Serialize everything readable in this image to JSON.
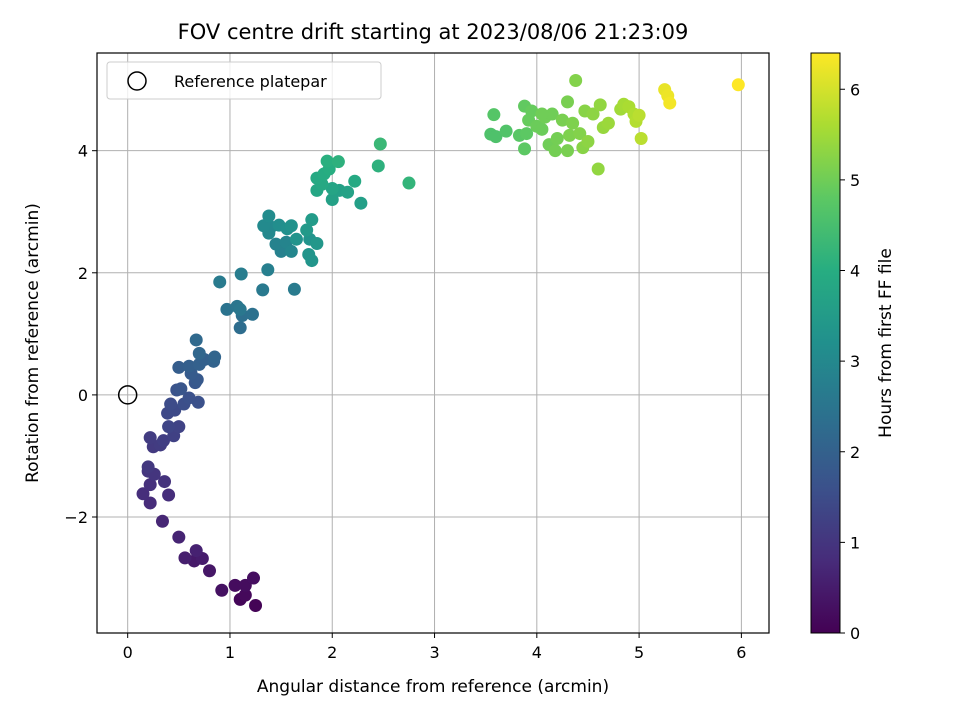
{
  "chart_data": {
    "type": "scatter",
    "title": "FOV centre drift starting at 2023/08/06 21:23:09",
    "xlabel": "Angular distance from reference (arcmin)",
    "ylabel": "Rotation from reference (arcmin)",
    "xlim": [
      -0.3,
      6.27
    ],
    "ylim": [
      -3.9,
      5.6
    ],
    "xticks": [
      0,
      1,
      2,
      3,
      4,
      5,
      6
    ],
    "yticks": [
      -2,
      0,
      2,
      4
    ],
    "xtick_labels": [
      "0",
      "1",
      "2",
      "3",
      "4",
      "5",
      "6"
    ],
    "ytick_labels": [
      "−2",
      "0",
      "2",
      "4"
    ],
    "grid": true,
    "legend": {
      "position": "top-left",
      "entries": [
        {
          "label": "Reference platepar",
          "marker": "open-circle"
        }
      ]
    },
    "reference_point": {
      "x": 0,
      "y": 0
    },
    "colorbar": {
      "label": "Hours from first FF file",
      "range": [
        0,
        6.4
      ],
      "ticks": [
        0,
        1,
        2,
        3,
        4,
        5,
        6
      ],
      "tick_labels": [
        "0",
        "1",
        "2",
        "3",
        "4",
        "5",
        "6"
      ],
      "colormap": "viridis"
    },
    "points": [
      {
        "x": 1.25,
        "y": -3.45,
        "h": 0.05
      },
      {
        "x": 1.1,
        "y": -3.35,
        "h": 0.1
      },
      {
        "x": 1.15,
        "y": -3.28,
        "h": 0.15
      },
      {
        "x": 1.05,
        "y": -3.12,
        "h": 0.2
      },
      {
        "x": 1.15,
        "y": -3.12,
        "h": 0.22
      },
      {
        "x": 1.23,
        "y": -3.0,
        "h": 0.25
      },
      {
        "x": 0.92,
        "y": -3.2,
        "h": 0.3
      },
      {
        "x": 0.8,
        "y": -2.88,
        "h": 0.4
      },
      {
        "x": 0.65,
        "y": -2.72,
        "h": 0.45
      },
      {
        "x": 0.73,
        "y": -2.68,
        "h": 0.5
      },
      {
        "x": 0.56,
        "y": -2.67,
        "h": 0.55
      },
      {
        "x": 0.67,
        "y": -2.55,
        "h": 0.6
      },
      {
        "x": 0.5,
        "y": -2.33,
        "h": 0.65
      },
      {
        "x": 0.34,
        "y": -2.07,
        "h": 0.7
      },
      {
        "x": 0.22,
        "y": -1.77,
        "h": 0.8
      },
      {
        "x": 0.15,
        "y": -1.62,
        "h": 0.85
      },
      {
        "x": 0.4,
        "y": -1.64,
        "h": 0.85
      },
      {
        "x": 0.22,
        "y": -1.47,
        "h": 0.9
      },
      {
        "x": 0.36,
        "y": -1.42,
        "h": 0.95
      },
      {
        "x": 0.2,
        "y": -1.25,
        "h": 1.0
      },
      {
        "x": 0.26,
        "y": -1.3,
        "h": 1.0
      },
      {
        "x": 0.2,
        "y": -1.18,
        "h": 1.05
      },
      {
        "x": 0.25,
        "y": -0.85,
        "h": 1.1
      },
      {
        "x": 0.32,
        "y": -0.82,
        "h": 1.15
      },
      {
        "x": 0.22,
        "y": -0.7,
        "h": 1.15
      },
      {
        "x": 0.35,
        "y": -0.75,
        "h": 1.2
      },
      {
        "x": 0.45,
        "y": -0.67,
        "h": 1.25
      },
      {
        "x": 0.5,
        "y": -0.52,
        "h": 1.3
      },
      {
        "x": 0.4,
        "y": -0.52,
        "h": 1.35
      },
      {
        "x": 0.39,
        "y": -0.3,
        "h": 1.4
      },
      {
        "x": 0.46,
        "y": -0.25,
        "h": 1.45
      },
      {
        "x": 0.42,
        "y": -0.15,
        "h": 1.5
      },
      {
        "x": 0.55,
        "y": -0.15,
        "h": 1.55
      },
      {
        "x": 0.69,
        "y": -0.12,
        "h": 1.6
      },
      {
        "x": 0.6,
        "y": -0.05,
        "h": 1.6
      },
      {
        "x": 0.48,
        "y": 0.08,
        "h": 1.65
      },
      {
        "x": 0.52,
        "y": 0.1,
        "h": 1.7
      },
      {
        "x": 0.66,
        "y": 0.2,
        "h": 1.75
      },
      {
        "x": 0.68,
        "y": 0.25,
        "h": 1.8
      },
      {
        "x": 0.62,
        "y": 0.35,
        "h": 1.85
      },
      {
        "x": 0.5,
        "y": 0.45,
        "h": 1.9
      },
      {
        "x": 0.6,
        "y": 0.47,
        "h": 1.95
      },
      {
        "x": 0.7,
        "y": 0.5,
        "h": 2.0
      },
      {
        "x": 0.75,
        "y": 0.58,
        "h": 2.0
      },
      {
        "x": 0.84,
        "y": 0.55,
        "h": 2.05
      },
      {
        "x": 0.85,
        "y": 0.62,
        "h": 2.1
      },
      {
        "x": 0.7,
        "y": 0.68,
        "h": 2.15
      },
      {
        "x": 0.67,
        "y": 0.9,
        "h": 2.2
      },
      {
        "x": 1.1,
        "y": 1.1,
        "h": 2.3
      },
      {
        "x": 1.12,
        "y": 1.3,
        "h": 2.35
      },
      {
        "x": 1.22,
        "y": 1.32,
        "h": 2.4
      },
      {
        "x": 0.97,
        "y": 1.4,
        "h": 2.45
      },
      {
        "x": 1.07,
        "y": 1.45,
        "h": 2.5
      },
      {
        "x": 1.1,
        "y": 1.4,
        "h": 2.55
      },
      {
        "x": 1.32,
        "y": 1.72,
        "h": 2.6
      },
      {
        "x": 1.63,
        "y": 1.73,
        "h": 2.65
      },
      {
        "x": 0.9,
        "y": 1.85,
        "h": 2.65
      },
      {
        "x": 1.11,
        "y": 1.98,
        "h": 2.7
      },
      {
        "x": 1.37,
        "y": 2.05,
        "h": 2.75
      },
      {
        "x": 1.5,
        "y": 2.35,
        "h": 2.8
      },
      {
        "x": 1.45,
        "y": 2.47,
        "h": 2.85
      },
      {
        "x": 1.55,
        "y": 2.5,
        "h": 2.9
      },
      {
        "x": 1.6,
        "y": 2.35,
        "h": 2.95
      },
      {
        "x": 1.38,
        "y": 2.65,
        "h": 3.0
      },
      {
        "x": 1.4,
        "y": 2.75,
        "h": 3.0
      },
      {
        "x": 1.33,
        "y": 2.77,
        "h": 3.05
      },
      {
        "x": 1.38,
        "y": 2.93,
        "h": 3.1
      },
      {
        "x": 1.48,
        "y": 2.78,
        "h": 3.15
      },
      {
        "x": 1.56,
        "y": 2.72,
        "h": 3.2
      },
      {
        "x": 1.6,
        "y": 2.77,
        "h": 3.25
      },
      {
        "x": 1.65,
        "y": 2.55,
        "h": 3.3
      },
      {
        "x": 1.78,
        "y": 2.55,
        "h": 3.3
      },
      {
        "x": 1.77,
        "y": 2.3,
        "h": 3.35
      },
      {
        "x": 1.8,
        "y": 2.2,
        "h": 3.35
      },
      {
        "x": 1.85,
        "y": 2.48,
        "h": 3.4
      },
      {
        "x": 1.75,
        "y": 2.7,
        "h": 3.45
      },
      {
        "x": 1.8,
        "y": 2.87,
        "h": 3.5
      },
      {
        "x": 2.28,
        "y": 3.14,
        "h": 3.6
      },
      {
        "x": 2.0,
        "y": 3.2,
        "h": 3.65
      },
      {
        "x": 2.07,
        "y": 3.35,
        "h": 3.65
      },
      {
        "x": 2.15,
        "y": 3.32,
        "h": 3.7
      },
      {
        "x": 2.0,
        "y": 3.38,
        "h": 3.75
      },
      {
        "x": 1.85,
        "y": 3.35,
        "h": 3.8
      },
      {
        "x": 1.9,
        "y": 3.45,
        "h": 3.85
      },
      {
        "x": 1.85,
        "y": 3.55,
        "h": 3.9
      },
      {
        "x": 2.22,
        "y": 3.5,
        "h": 3.9
      },
      {
        "x": 1.92,
        "y": 3.62,
        "h": 3.95
      },
      {
        "x": 1.97,
        "y": 3.7,
        "h": 4.0
      },
      {
        "x": 1.95,
        "y": 3.83,
        "h": 4.05
      },
      {
        "x": 2.06,
        "y": 3.82,
        "h": 4.1
      },
      {
        "x": 2.45,
        "y": 3.75,
        "h": 4.1
      },
      {
        "x": 2.75,
        "y": 3.47,
        "h": 4.2
      },
      {
        "x": 2.47,
        "y": 4.11,
        "h": 4.3
      },
      {
        "x": 3.55,
        "y": 4.27,
        "h": 4.6
      },
      {
        "x": 3.6,
        "y": 4.23,
        "h": 4.6
      },
      {
        "x": 3.7,
        "y": 4.32,
        "h": 4.65
      },
      {
        "x": 3.58,
        "y": 4.59,
        "h": 4.7
      },
      {
        "x": 3.83,
        "y": 4.25,
        "h": 4.75
      },
      {
        "x": 3.88,
        "y": 4.03,
        "h": 4.8
      },
      {
        "x": 3.9,
        "y": 4.28,
        "h": 4.8
      },
      {
        "x": 3.88,
        "y": 4.73,
        "h": 4.85
      },
      {
        "x": 3.92,
        "y": 4.5,
        "h": 4.9
      },
      {
        "x": 3.95,
        "y": 4.65,
        "h": 4.9
      },
      {
        "x": 4.0,
        "y": 4.4,
        "h": 4.95
      },
      {
        "x": 4.05,
        "y": 4.35,
        "h": 4.95
      },
      {
        "x": 4.08,
        "y": 4.55,
        "h": 5.0
      },
      {
        "x": 4.12,
        "y": 4.1,
        "h": 5.0
      },
      {
        "x": 4.15,
        "y": 4.6,
        "h": 5.0
      },
      {
        "x": 4.18,
        "y": 4.0,
        "h": 5.05
      },
      {
        "x": 4.2,
        "y": 4.2,
        "h": 5.05
      },
      {
        "x": 4.25,
        "y": 4.5,
        "h": 5.1
      },
      {
        "x": 4.3,
        "y": 4.0,
        "h": 5.1
      },
      {
        "x": 4.32,
        "y": 4.25,
        "h": 5.15
      },
      {
        "x": 4.35,
        "y": 4.45,
        "h": 5.15
      },
      {
        "x": 4.38,
        "y": 5.15,
        "h": 5.2
      },
      {
        "x": 4.42,
        "y": 4.28,
        "h": 5.2
      },
      {
        "x": 4.45,
        "y": 4.05,
        "h": 5.25
      },
      {
        "x": 4.47,
        "y": 4.65,
        "h": 5.25
      },
      {
        "x": 4.5,
        "y": 4.15,
        "h": 5.3
      },
      {
        "x": 4.55,
        "y": 4.6,
        "h": 5.3
      },
      {
        "x": 4.6,
        "y": 3.7,
        "h": 5.35
      },
      {
        "x": 4.62,
        "y": 4.75,
        "h": 5.35
      },
      {
        "x": 4.65,
        "y": 4.38,
        "h": 5.4
      },
      {
        "x": 4.7,
        "y": 4.45,
        "h": 5.45
      },
      {
        "x": 4.82,
        "y": 4.68,
        "h": 5.5
      },
      {
        "x": 4.85,
        "y": 4.76,
        "h": 5.55
      },
      {
        "x": 4.9,
        "y": 4.72,
        "h": 5.6
      },
      {
        "x": 4.95,
        "y": 4.6,
        "h": 5.65
      },
      {
        "x": 4.97,
        "y": 4.48,
        "h": 5.7
      },
      {
        "x": 5.0,
        "y": 4.58,
        "h": 5.75
      },
      {
        "x": 5.02,
        "y": 4.2,
        "h": 5.75
      },
      {
        "x": 4.3,
        "y": 4.8,
        "h": 5.1
      },
      {
        "x": 4.05,
        "y": 4.6,
        "h": 5.0
      },
      {
        "x": 5.25,
        "y": 5.0,
        "h": 6.2
      },
      {
        "x": 5.28,
        "y": 4.9,
        "h": 6.25
      },
      {
        "x": 5.3,
        "y": 4.78,
        "h": 6.3
      },
      {
        "x": 5.97,
        "y": 5.08,
        "h": 6.4
      }
    ]
  }
}
